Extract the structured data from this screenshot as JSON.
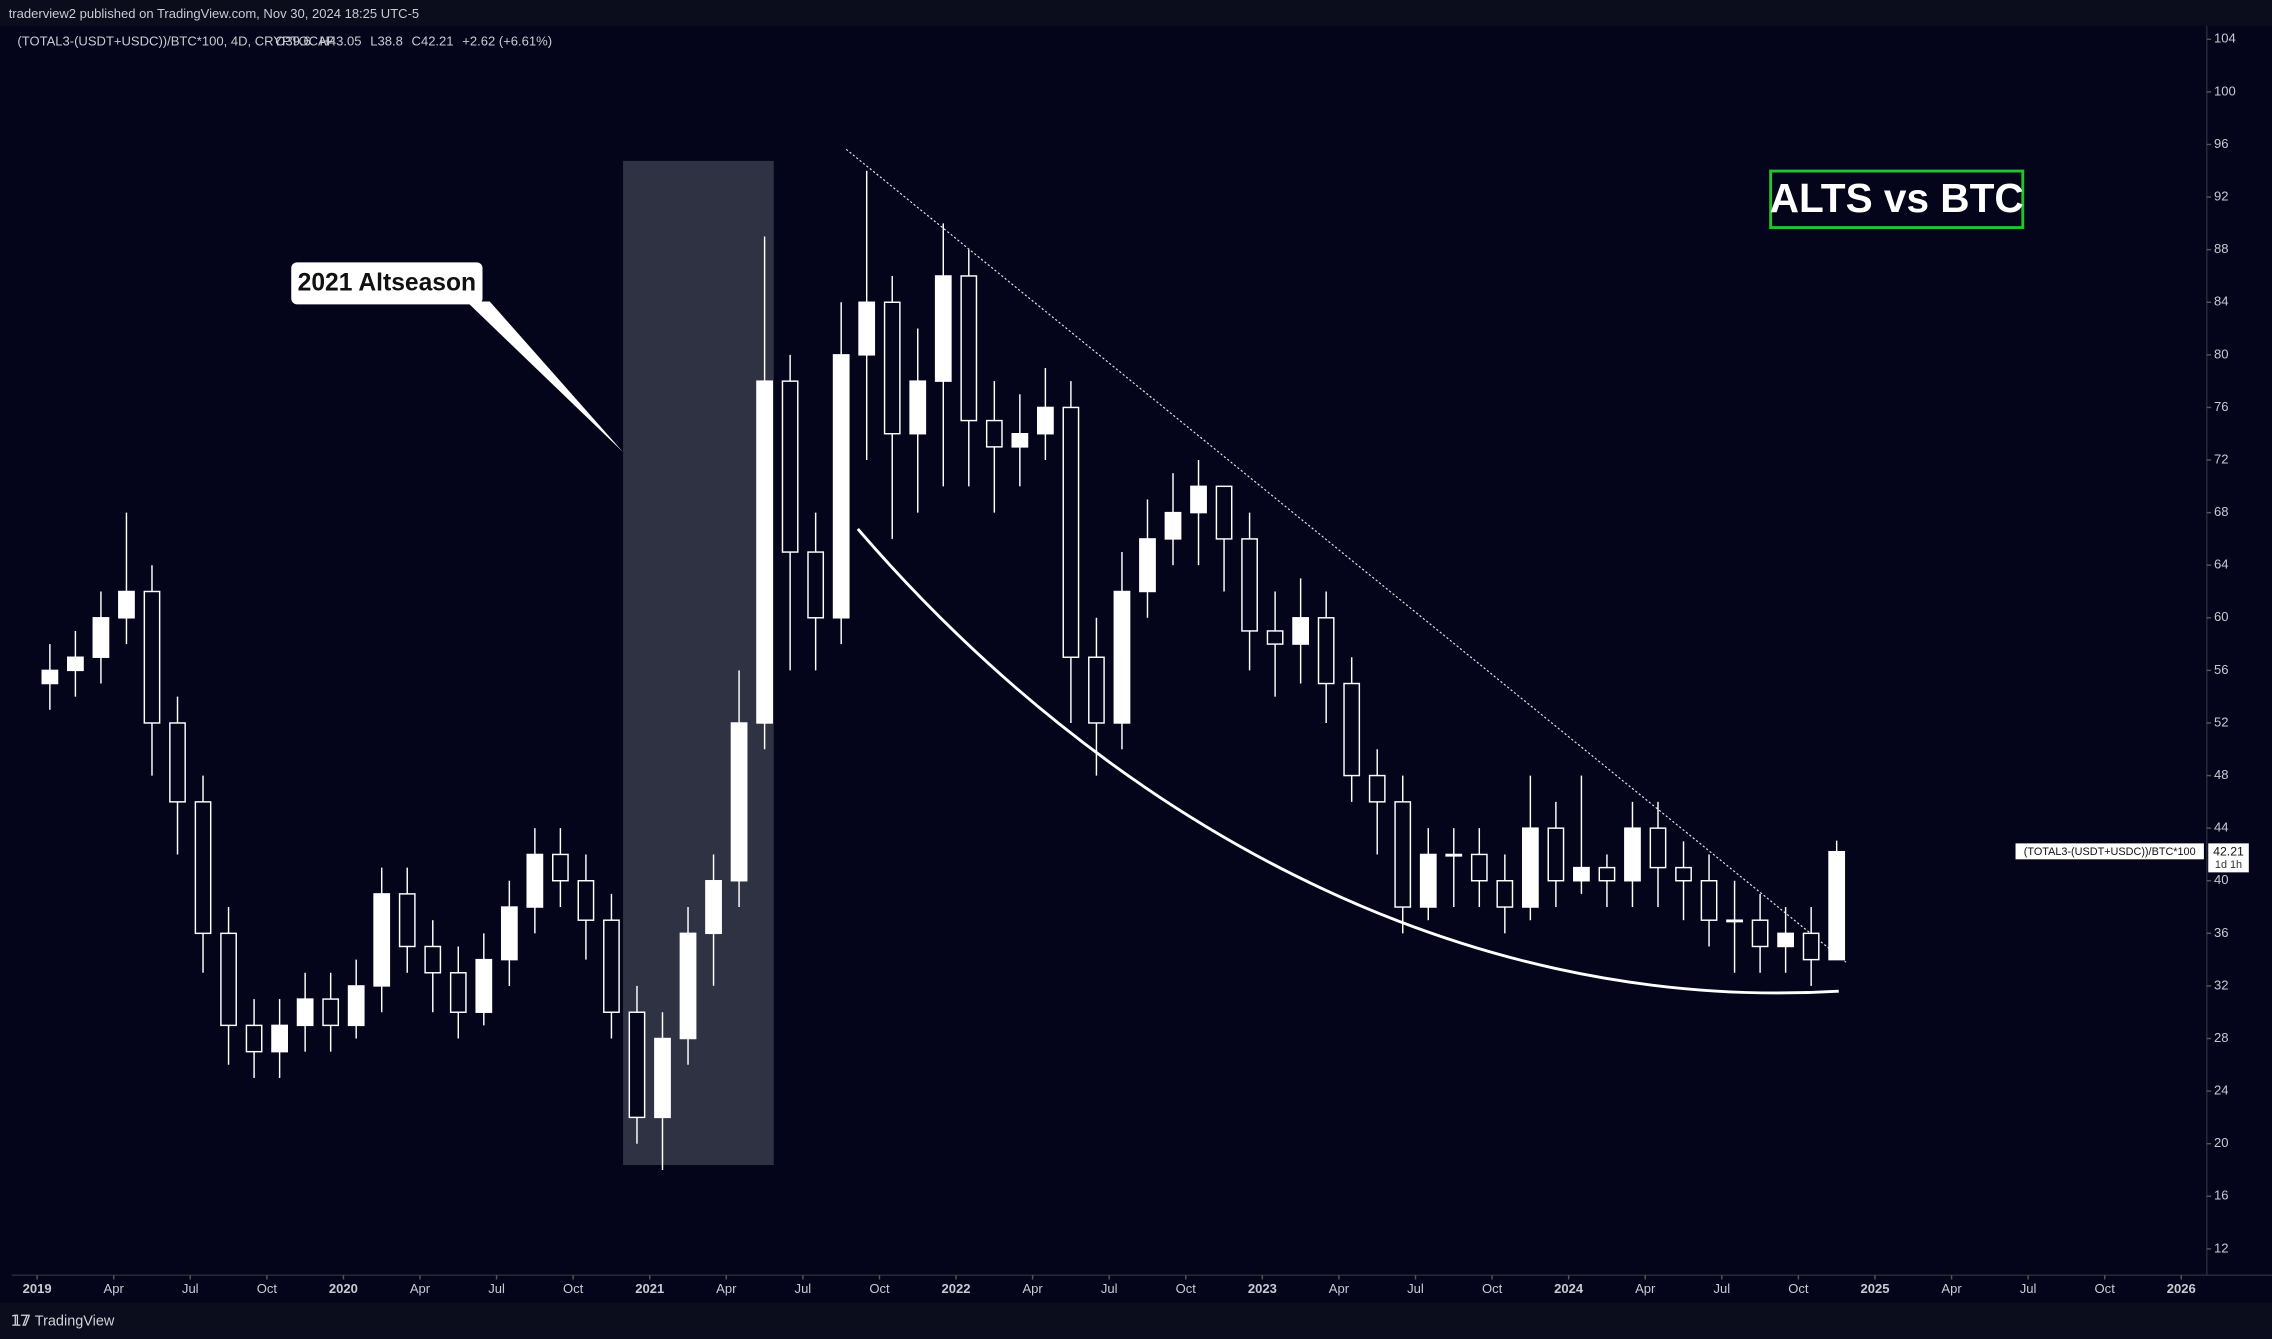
{
  "header": {
    "publisher": "traderview2 published on TradingView.com, Nov 30, 2024 18:25 UTC-5",
    "symbol": "(TOTAL3-(USDT+USDC))/BTC*100, 4D, CRYPTOCAP",
    "legend_values": [
      "O39.6",
      "H43.05",
      "L38.8",
      "C42.21",
      "+2.62 (+6.61%)"
    ]
  },
  "footer": {
    "brand": "TradingView"
  },
  "chart_data": {
    "type": "candlestick",
    "annotations": [
      "2021 Altseason",
      "ALTS vs BTC"
    ],
    "series_label": "(TOTAL3-(USDT+USDC))/BTC*100",
    "last_price_label": "42.21",
    "countdown": "1d 1h",
    "up_color": "#ffffff",
    "down_color": "#ffffff",
    "x": [
      "2019-01",
      "2019-02",
      "2019-03",
      "2019-04",
      "2019-05",
      "2019-06",
      "2019-07",
      "2019-08",
      "2019-09",
      "2019-10",
      "2019-11",
      "2019-12",
      "2020-01",
      "2020-02",
      "2020-03",
      "2020-04",
      "2020-05",
      "2020-06",
      "2020-07",
      "2020-08",
      "2020-09",
      "2020-10",
      "2020-11",
      "2020-12",
      "2021-01",
      "2021-02",
      "2021-03",
      "2021-04",
      "2021-05",
      "2021-06",
      "2021-07",
      "2021-08",
      "2021-09",
      "2021-10",
      "2021-11",
      "2021-12",
      "2022-01",
      "2022-02",
      "2022-03",
      "2022-04",
      "2022-05",
      "2022-06",
      "2022-07",
      "2022-08",
      "2022-09",
      "2022-10",
      "2022-11",
      "2022-12",
      "2023-01",
      "2023-02",
      "2023-03",
      "2023-04",
      "2023-05",
      "2023-06",
      "2023-07",
      "2023-08",
      "2023-09",
      "2023-10",
      "2023-11",
      "2023-12",
      "2024-01",
      "2024-02",
      "2024-03",
      "2024-04",
      "2024-05",
      "2024-06",
      "2024-07",
      "2024-08",
      "2024-09",
      "2024-10",
      "2024-11"
    ],
    "open": [
      55,
      56,
      57,
      60,
      62,
      52,
      46,
      36,
      29,
      27,
      29,
      31,
      29,
      32,
      39,
      35,
      33,
      30,
      34,
      38,
      42,
      40,
      37,
      30,
      22,
      28,
      36,
      40,
      52,
      78,
      65,
      60,
      80,
      84,
      74,
      78,
      86,
      75,
      73,
      74,
      76,
      57,
      52,
      62,
      66,
      68,
      70,
      66,
      59,
      58,
      60,
      55,
      48,
      46,
      38,
      42,
      42,
      40,
      38,
      44,
      40,
      41,
      40,
      44,
      41,
      40,
      37,
      37,
      35,
      36,
      34
    ],
    "high": [
      58,
      59,
      62,
      68,
      64,
      54,
      48,
      38,
      31,
      31,
      33,
      33,
      34,
      41,
      41,
      37,
      35,
      36,
      40,
      44,
      44,
      42,
      39,
      32,
      30,
      38,
      42,
      56,
      89,
      80,
      68,
      84,
      94,
      86,
      82,
      90,
      88,
      78,
      77,
      79,
      78,
      60,
      65,
      69,
      71,
      72,
      70,
      68,
      62,
      63,
      62,
      57,
      50,
      48,
      44,
      44,
      44,
      42,
      48,
      46,
      48,
      42,
      46,
      46,
      43,
      42,
      40,
      39,
      38,
      38,
      43.05
    ],
    "low": [
      53,
      54,
      55,
      58,
      48,
      42,
      33,
      26,
      25,
      25,
      27,
      27,
      28,
      30,
      33,
      30,
      28,
      29,
      32,
      36,
      38,
      34,
      28,
      20,
      18,
      26,
      32,
      38,
      50,
      56,
      56,
      58,
      72,
      66,
      68,
      70,
      70,
      68,
      70,
      72,
      52,
      48,
      50,
      60,
      64,
      64,
      62,
      56,
      54,
      55,
      52,
      46,
      42,
      36,
      37,
      38,
      38,
      36,
      37,
      38,
      39,
      38,
      38,
      38,
      37,
      35,
      33,
      33,
      33,
      32,
      34
    ],
    "close": [
      56,
      57,
      60,
      62,
      52,
      46,
      36,
      29,
      27,
      29,
      31,
      29,
      32,
      39,
      35,
      33,
      30,
      34,
      38,
      42,
      40,
      37,
      30,
      22,
      28,
      36,
      40,
      52,
      78,
      65,
      60,
      80,
      84,
      74,
      78,
      86,
      75,
      73,
      74,
      76,
      57,
      52,
      62,
      66,
      68,
      70,
      66,
      59,
      58,
      60,
      55,
      48,
      46,
      38,
      42,
      42,
      40,
      38,
      44,
      40,
      41,
      40,
      44,
      41,
      40,
      37,
      37,
      35,
      36,
      34,
      42.21
    ],
    "xlim": [
      "2018-12",
      "2026-02"
    ],
    "xticks": [
      {
        "value": "2019-01",
        "label": "2019"
      },
      {
        "value": "2019-04",
        "label": "Apr"
      },
      {
        "value": "2019-07",
        "label": "Jul"
      },
      {
        "value": "2019-10",
        "label": "Oct"
      },
      {
        "value": "2020-01",
        "label": "2020"
      },
      {
        "value": "2020-04",
        "label": "Apr"
      },
      {
        "value": "2020-07",
        "label": "Jul"
      },
      {
        "value": "2020-10",
        "label": "Oct"
      },
      {
        "value": "2021-01",
        "label": "2021"
      },
      {
        "value": "2021-04",
        "label": "Apr"
      },
      {
        "value": "2021-07",
        "label": "Jul"
      },
      {
        "value": "2021-10",
        "label": "Oct"
      },
      {
        "value": "2022-01",
        "label": "2022"
      },
      {
        "value": "2022-04",
        "label": "Apr"
      },
      {
        "value": "2022-07",
        "label": "Jul"
      },
      {
        "value": "2022-10",
        "label": "Oct"
      },
      {
        "value": "2023-01",
        "label": "2023"
      },
      {
        "value": "2023-04",
        "label": "Apr"
      },
      {
        "value": "2023-07",
        "label": "Jul"
      },
      {
        "value": "2023-10",
        "label": "Oct"
      },
      {
        "value": "2024-01",
        "label": "2024"
      },
      {
        "value": "2024-04",
        "label": "Apr"
      },
      {
        "value": "2024-07",
        "label": "Jul"
      },
      {
        "value": "2024-10",
        "label": "Oct"
      },
      {
        "value": "2025-01",
        "label": "2025"
      },
      {
        "value": "2025-04",
        "label": "Apr"
      },
      {
        "value": "2025-07",
        "label": "Jul"
      },
      {
        "value": "2025-10",
        "label": "Oct"
      },
      {
        "value": "2026-01",
        "label": "2026"
      }
    ],
    "ylim": [
      10,
      105
    ],
    "yticks": [
      12,
      16,
      20,
      24,
      28,
      32,
      36,
      40,
      44,
      48,
      52,
      56,
      60,
      64,
      68,
      72,
      76,
      80,
      84,
      88,
      92,
      96,
      100,
      104
    ]
  }
}
